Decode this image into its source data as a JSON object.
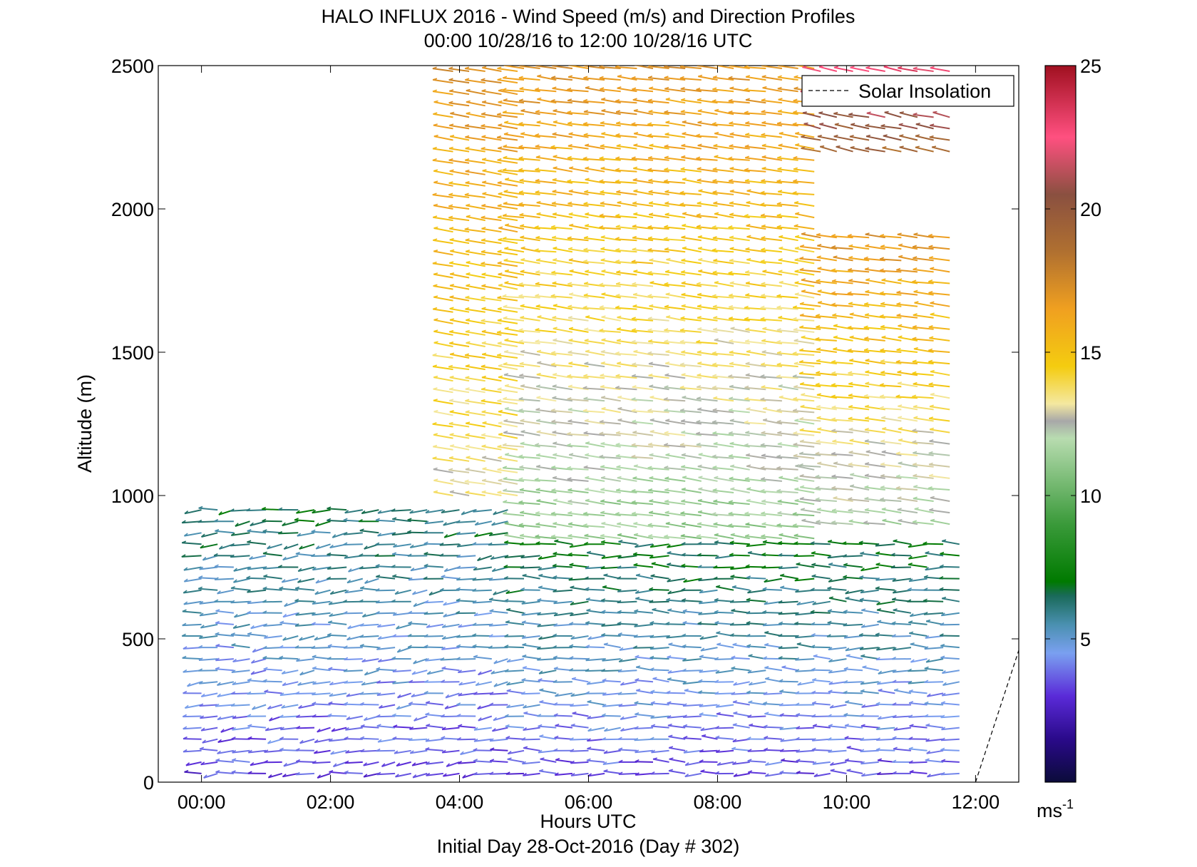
{
  "chart_data": {
    "type": "scatter",
    "title": "HALO INFLUX 2016 - Wind Speed (m/s) and Direction Profiles",
    "subtitle": "00:00 10/28/16 to 12:00 10/28/16  UTC",
    "xlabel": "Hours UTC",
    "xlabel_secondary": "Initial Day 28-Oct-2016 (Day # 302)",
    "ylabel": "Altitude (m)",
    "xlim": [
      -0.67,
      12.67
    ],
    "ylim": [
      0,
      2500
    ],
    "x_ticks": [
      {
        "value": 0,
        "label": "00:00"
      },
      {
        "value": 2,
        "label": "02:00"
      },
      {
        "value": 4,
        "label": "04:00"
      },
      {
        "value": 6,
        "label": "06:00"
      },
      {
        "value": 8,
        "label": "08:00"
      },
      {
        "value": 10,
        "label": "10:00"
      },
      {
        "value": 12,
        "label": "12:00"
      }
    ],
    "y_ticks": [
      0,
      500,
      1000,
      1500,
      2000,
      2500
    ],
    "legend": {
      "label": "Solar Insolation",
      "placement": "top-right"
    },
    "colorbar": {
      "range": [
        0,
        25
      ],
      "ticks": [
        5,
        10,
        15,
        20,
        25
      ],
      "unit": "ms",
      "unit_exponent": "-1",
      "stops": [
        {
          "value": 0.0,
          "color": "#0b0b3a"
        },
        {
          "value": 1.5,
          "color": "#2a0a8a"
        },
        {
          "value": 3.0,
          "color": "#5a2ad8"
        },
        {
          "value": 4.5,
          "color": "#7aa0f0"
        },
        {
          "value": 5.5,
          "color": "#4a90b0"
        },
        {
          "value": 6.5,
          "color": "#1a6a5a"
        },
        {
          "value": 7.0,
          "color": "#007a00"
        },
        {
          "value": 9.0,
          "color": "#3a9a3a"
        },
        {
          "value": 12.0,
          "color": "#b8dcb0"
        },
        {
          "value": 12.6,
          "color": "#a8a8a8"
        },
        {
          "value": 13.2,
          "color": "#f4e8a0"
        },
        {
          "value": 14.5,
          "color": "#f4cc10"
        },
        {
          "value": 16.5,
          "color": "#f0a020"
        },
        {
          "value": 18.5,
          "color": "#b07030"
        },
        {
          "value": 20.5,
          "color": "#8a5040"
        },
        {
          "value": 22.5,
          "color": "#ff5080"
        },
        {
          "value": 25.0,
          "color": "#a01020"
        }
      ]
    },
    "solar_insolation": [
      {
        "x": 12.0,
        "y": 0
      },
      {
        "x": 12.67,
        "y": 460
      }
    ],
    "wind_profiles": [
      {
        "x_range": [
          0.0,
          4.8
        ],
        "alt_range": [
          30,
          960
        ],
        "speed_range": [
          1.5,
          6.5
        ],
        "direction_deg": [
          225,
          290
        ]
      },
      {
        "x_range": [
          3.9,
          4.9
        ],
        "alt_range": [
          1000,
          2500
        ],
        "speed_range": [
          11,
          17
        ],
        "direction_deg": [
          290,
          300
        ]
      },
      {
        "x_range": [
          5.0,
          9.6
        ],
        "alt_range": [
          850,
          2500
        ],
        "speed_range": [
          8,
          17
        ],
        "direction_deg": [
          280,
          300
        ]
      },
      {
        "x_range": [
          9.6,
          11.8
        ],
        "alt_range": [
          900,
          1920
        ],
        "speed_range": [
          9,
          17
        ],
        "direction_deg": [
          280,
          300
        ]
      },
      {
        "x_range": [
          9.6,
          11.8
        ],
        "alt_range": [
          2200,
          2500
        ],
        "speed_range": [
          17,
          23
        ],
        "direction_deg": [
          290,
          310
        ]
      },
      {
        "x_range": [
          5.0,
          11.8
        ],
        "alt_range": [
          30,
          850
        ],
        "speed_range": [
          1.5,
          7
        ],
        "direction_deg": [
          240,
          300
        ]
      }
    ]
  }
}
